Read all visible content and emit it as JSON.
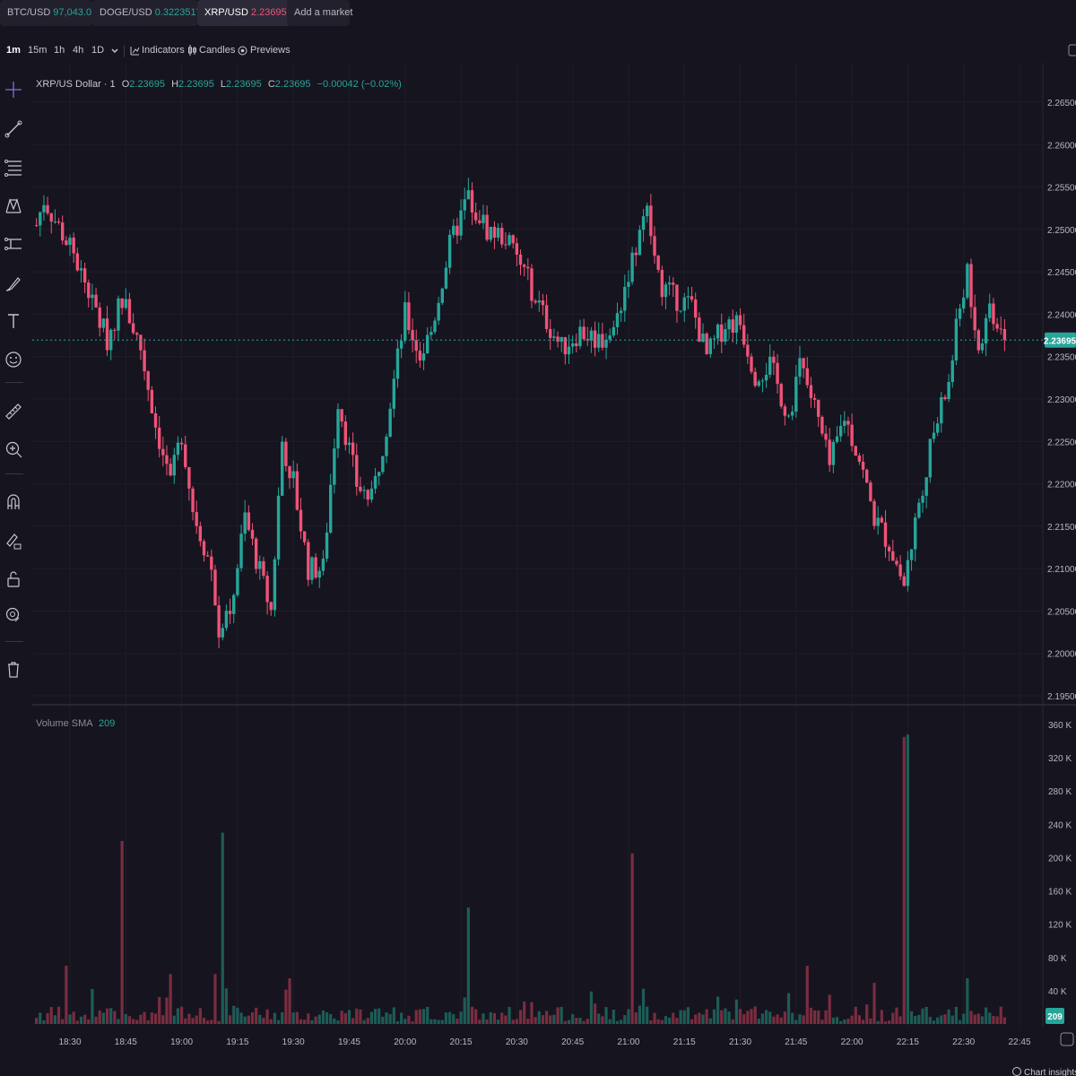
{
  "tabs": [
    {
      "symbol": "BTC/USD",
      "price": "97,043.0",
      "color": "#26a69a",
      "active": false
    },
    {
      "symbol": "DOGE/USD",
      "price": "0.3223517",
      "color": "#26a69a",
      "active": false
    },
    {
      "symbol": "XRP/USD",
      "price": "2.23695",
      "color": "#ef5377",
      "active": true
    }
  ],
  "add_market": "Add a market",
  "close_glyph": "X",
  "timeframes": [
    "1m",
    "15m",
    "1h",
    "4h",
    "1D"
  ],
  "active_timeframe": "1m",
  "toolbar": {
    "indicators": "Indicators",
    "candles": "Candles",
    "previews": "Previews"
  },
  "legend": {
    "name": "XRP/US Dollar · 1",
    "o_label": "O",
    "o": "2.23695",
    "h_label": "H",
    "h": "2.23695",
    "l_label": "L",
    "l": "2.23695",
    "c_label": "C",
    "c": "2.23695",
    "change": "−0.00042 (−0.02%)"
  },
  "volume_legend": {
    "label": "Volume SMA",
    "value": "209"
  },
  "price_badge": "2.23695",
  "volume_badge": "209",
  "footer": "Chart insights",
  "colors": {
    "up": "#26a69a",
    "down": "#ef5377",
    "up_vol": "#1d5c56",
    "down_vol": "#7a2d40",
    "bg": "#16141f",
    "grid": "#1f1d29",
    "text": "#b8b8c0"
  },
  "sidebar_tools": [
    "crosshair-icon",
    "trend-line-icon",
    "fib-icon",
    "pattern-icon",
    "measure-lines-icon",
    "brush-icon",
    "text-icon",
    "emoji-icon",
    "ruler-icon",
    "zoom-in-icon",
    "magnet-icon",
    "lock-draw-icon",
    "lock-icon",
    "eye-icon",
    "trash-icon"
  ],
  "chart_data": {
    "type": "candlestick",
    "title": "XRP/US Dollar · 1",
    "interval": "1m",
    "y_ticks": [
      "2.26500",
      "2.26000",
      "2.25500",
      "2.25000",
      "2.24500",
      "2.24000",
      "2.23500",
      "2.23000",
      "2.22500",
      "2.22000",
      "2.21500",
      "2.21000",
      "2.20500",
      "2.20000",
      "2.19500"
    ],
    "x_ticks": [
      "18:30",
      "18:45",
      "19:00",
      "19:15",
      "19:30",
      "19:45",
      "20:00",
      "20:15",
      "20:30",
      "20:45",
      "21:00",
      "21:15",
      "21:30",
      "21:45",
      "22:00",
      "22:15",
      "22:30",
      "22:45"
    ],
    "ylim": [
      2.195,
      2.265
    ],
    "last_price": 2.23695,
    "volume_ticks": [
      "360 K",
      "320 K",
      "280 K",
      "240 K",
      "200 K",
      "160 K",
      "120 K",
      "80 K",
      "40 K"
    ],
    "volume_ylim": [
      0,
      360000
    ],
    "price_keypoints": [
      {
        "t": "18:21",
        "p": 2.2505
      },
      {
        "t": "18:23",
        "p": 2.2535
      },
      {
        "t": "18:28",
        "p": 2.2495
      },
      {
        "t": "18:32",
        "p": 2.246
      },
      {
        "t": "18:40",
        "p": 2.237
      },
      {
        "t": "18:44",
        "p": 2.242
      },
      {
        "t": "18:49",
        "p": 2.236
      },
      {
        "t": "18:53",
        "p": 2.227
      },
      {
        "t": "18:57",
        "p": 2.22
      },
      {
        "t": "19:00",
        "p": 2.226
      },
      {
        "t": "19:03",
        "p": 2.217
      },
      {
        "t": "19:08",
        "p": 2.21
      },
      {
        "t": "19:10",
        "p": 2.203
      },
      {
        "t": "19:13",
        "p": 2.205
      },
      {
        "t": "19:17",
        "p": 2.216
      },
      {
        "t": "19:22",
        "p": 2.208
      },
      {
        "t": "19:24",
        "p": 2.205
      },
      {
        "t": "19:27",
        "p": 2.225
      },
      {
        "t": "19:30",
        "p": 2.22
      },
      {
        "t": "19:34",
        "p": 2.21
      },
      {
        "t": "19:38",
        "p": 2.21
      },
      {
        "t": "19:42",
        "p": 2.23
      },
      {
        "t": "19:47",
        "p": 2.22
      },
      {
        "t": "19:51",
        "p": 2.218
      },
      {
        "t": "19:55",
        "p": 2.227
      },
      {
        "t": "20:00",
        "p": 2.24
      },
      {
        "t": "20:04",
        "p": 2.235
      },
      {
        "t": "20:07",
        "p": 2.238
      },
      {
        "t": "20:12",
        "p": 2.248
      },
      {
        "t": "20:17",
        "p": 2.254
      },
      {
        "t": "20:22",
        "p": 2.25
      },
      {
        "t": "20:27",
        "p": 2.249
      },
      {
        "t": "20:32",
        "p": 2.245
      },
      {
        "t": "20:37",
        "p": 2.24
      },
      {
        "t": "20:42",
        "p": 2.236
      },
      {
        "t": "20:47",
        "p": 2.238
      },
      {
        "t": "20:52",
        "p": 2.237
      },
      {
        "t": "20:56",
        "p": 2.238
      },
      {
        "t": "21:00",
        "p": 2.245
      },
      {
        "t": "21:05",
        "p": 2.252
      },
      {
        "t": "21:08",
        "p": 2.244
      },
      {
        "t": "21:12",
        "p": 2.242
      },
      {
        "t": "21:17",
        "p": 2.241
      },
      {
        "t": "21:21",
        "p": 2.235
      },
      {
        "t": "21:26",
        "p": 2.239
      },
      {
        "t": "21:30",
        "p": 2.239
      },
      {
        "t": "21:34",
        "p": 2.233
      },
      {
        "t": "21:38",
        "p": 2.234
      },
      {
        "t": "21:43",
        "p": 2.228
      },
      {
        "t": "21:46",
        "p": 2.234
      },
      {
        "t": "21:50",
        "p": 2.229
      },
      {
        "t": "21:54",
        "p": 2.222
      },
      {
        "t": "21:58",
        "p": 2.228
      },
      {
        "t": "22:02",
        "p": 2.223
      },
      {
        "t": "22:06",
        "p": 2.216
      },
      {
        "t": "22:10",
        "p": 2.213
      },
      {
        "t": "22:14",
        "p": 2.208
      },
      {
        "t": "22:18",
        "p": 2.218
      },
      {
        "t": "22:22",
        "p": 2.226
      },
      {
        "t": "22:26",
        "p": 2.232
      },
      {
        "t": "22:29",
        "p": 2.241
      },
      {
        "t": "22:31",
        "p": 2.245
      },
      {
        "t": "22:34",
        "p": 2.236
      },
      {
        "t": "22:37",
        "p": 2.241
      },
      {
        "t": "22:41",
        "p": 2.237
      }
    ],
    "volume_spikes": [
      {
        "t": "18:44",
        "v": 220000,
        "dir": "down"
      },
      {
        "t": "19:11",
        "v": 230000,
        "dir": "up"
      },
      {
        "t": "20:17",
        "v": 140000,
        "dir": "up"
      },
      {
        "t": "21:01",
        "v": 205000,
        "dir": "down"
      },
      {
        "t": "22:14",
        "v": 345000,
        "dir": "down"
      },
      {
        "t": "22:15",
        "v": 348000,
        "dir": "up"
      },
      {
        "t": "18:29",
        "v": 70000,
        "dir": "down"
      },
      {
        "t": "18:57",
        "v": 60000,
        "dir": "down"
      },
      {
        "t": "19:09",
        "v": 60000,
        "dir": "down"
      },
      {
        "t": "19:29",
        "v": 55000,
        "dir": "down"
      },
      {
        "t": "21:48",
        "v": 70000,
        "dir": "down"
      },
      {
        "t": "22:31",
        "v": 55000,
        "dir": "up"
      }
    ]
  }
}
